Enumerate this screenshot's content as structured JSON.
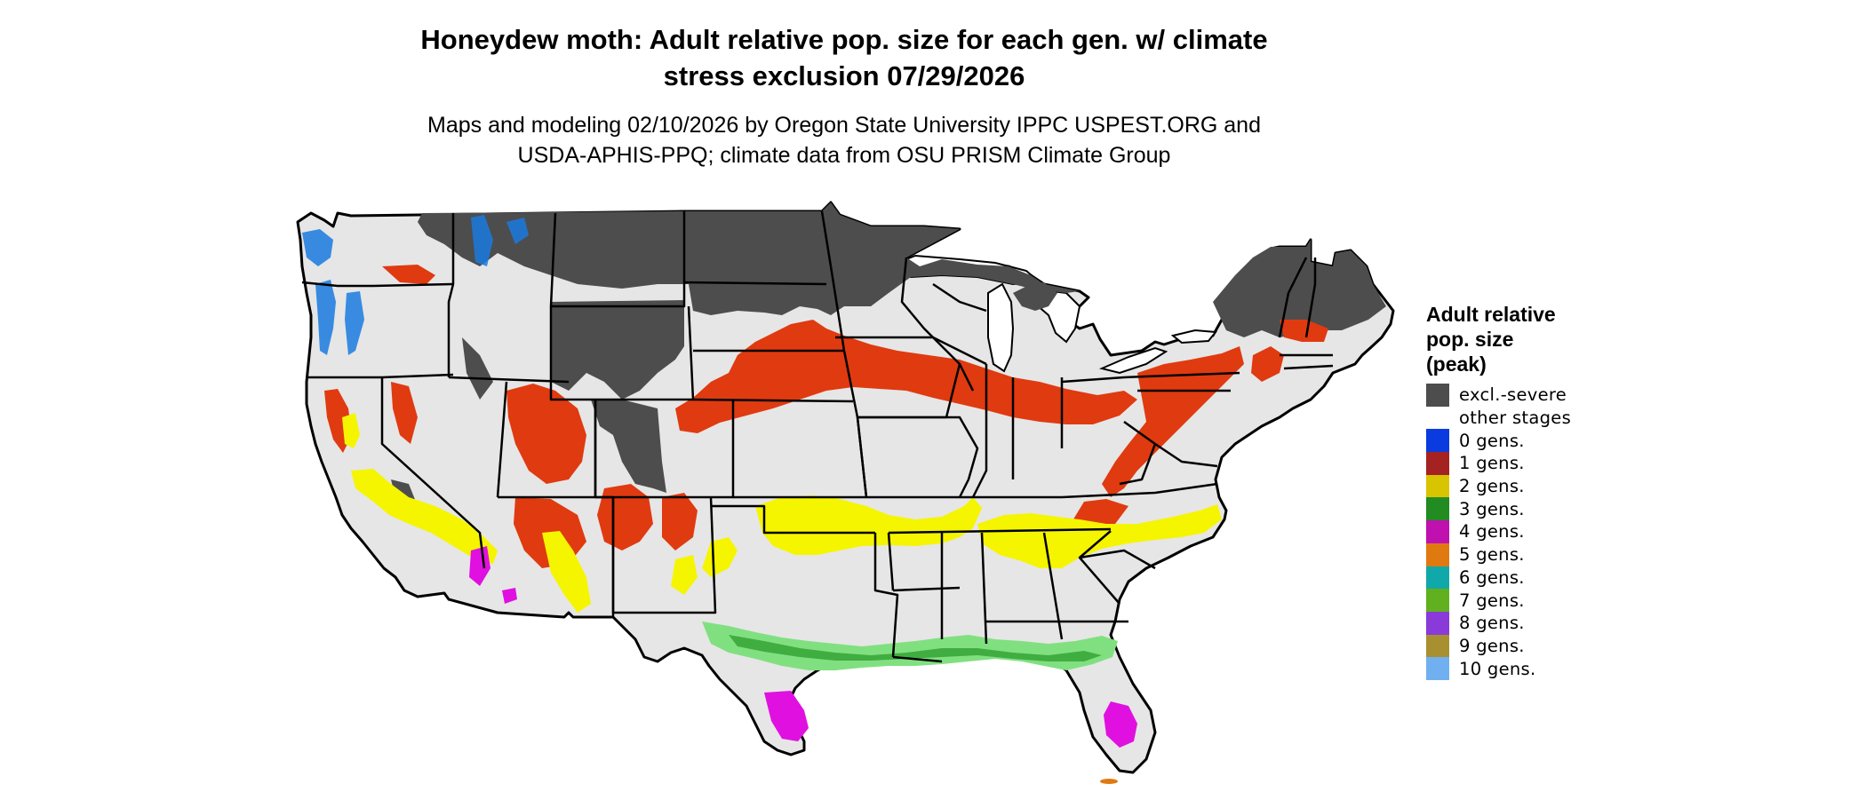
{
  "title_line1": "Honeydew moth: Adult relative pop. size for each gen. w/ climate",
  "title_line2": "stress exclusion 07/29/2026",
  "subtitle_line1": "Maps and modeling 02/10/2026 by Oregon State University IPPC USPEST.ORG and",
  "subtitle_line2": "USDA-APHIS-PPQ; climate data from OSU PRISM Climate Group",
  "legend": {
    "title_line1": "Adult relative",
    "title_line2": "pop. size",
    "title_line3": "(peak)",
    "items": [
      {
        "label": "excl.-severe",
        "color": "#4d4d4d"
      },
      {
        "label": "other stages",
        "color": "#ffffff"
      },
      {
        "label": "0 gens.",
        "color": "#0a3be0"
      },
      {
        "label": "1 gens.",
        "color": "#a52222"
      },
      {
        "label": "2 gens.",
        "color": "#d8c400"
      },
      {
        "label": "3 gens.",
        "color": "#228b22"
      },
      {
        "label": "4 gens.",
        "color": "#c010b0"
      },
      {
        "label": "5 gens.",
        "color": "#e07a10"
      },
      {
        "label": "6 gens.",
        "color": "#10a8a8"
      },
      {
        "label": "7 gens.",
        "color": "#60b020"
      },
      {
        "label": "8 gens.",
        "color": "#8a3ad8"
      },
      {
        "label": "9 gens.",
        "color": "#a89030"
      },
      {
        "label": "10 gens.",
        "color": "#70b0f0"
      }
    ]
  },
  "map_colors": {
    "background": "#e6e6e6",
    "excluded": "#4d4d4d",
    "one_gen": "#e03a10",
    "two_gen": "#f5f500",
    "three_gen_light": "#80e080",
    "three_gen": "#30a030",
    "four_gen": "#e010e0",
    "blue": "#1a7ae0",
    "border": "#000000"
  }
}
